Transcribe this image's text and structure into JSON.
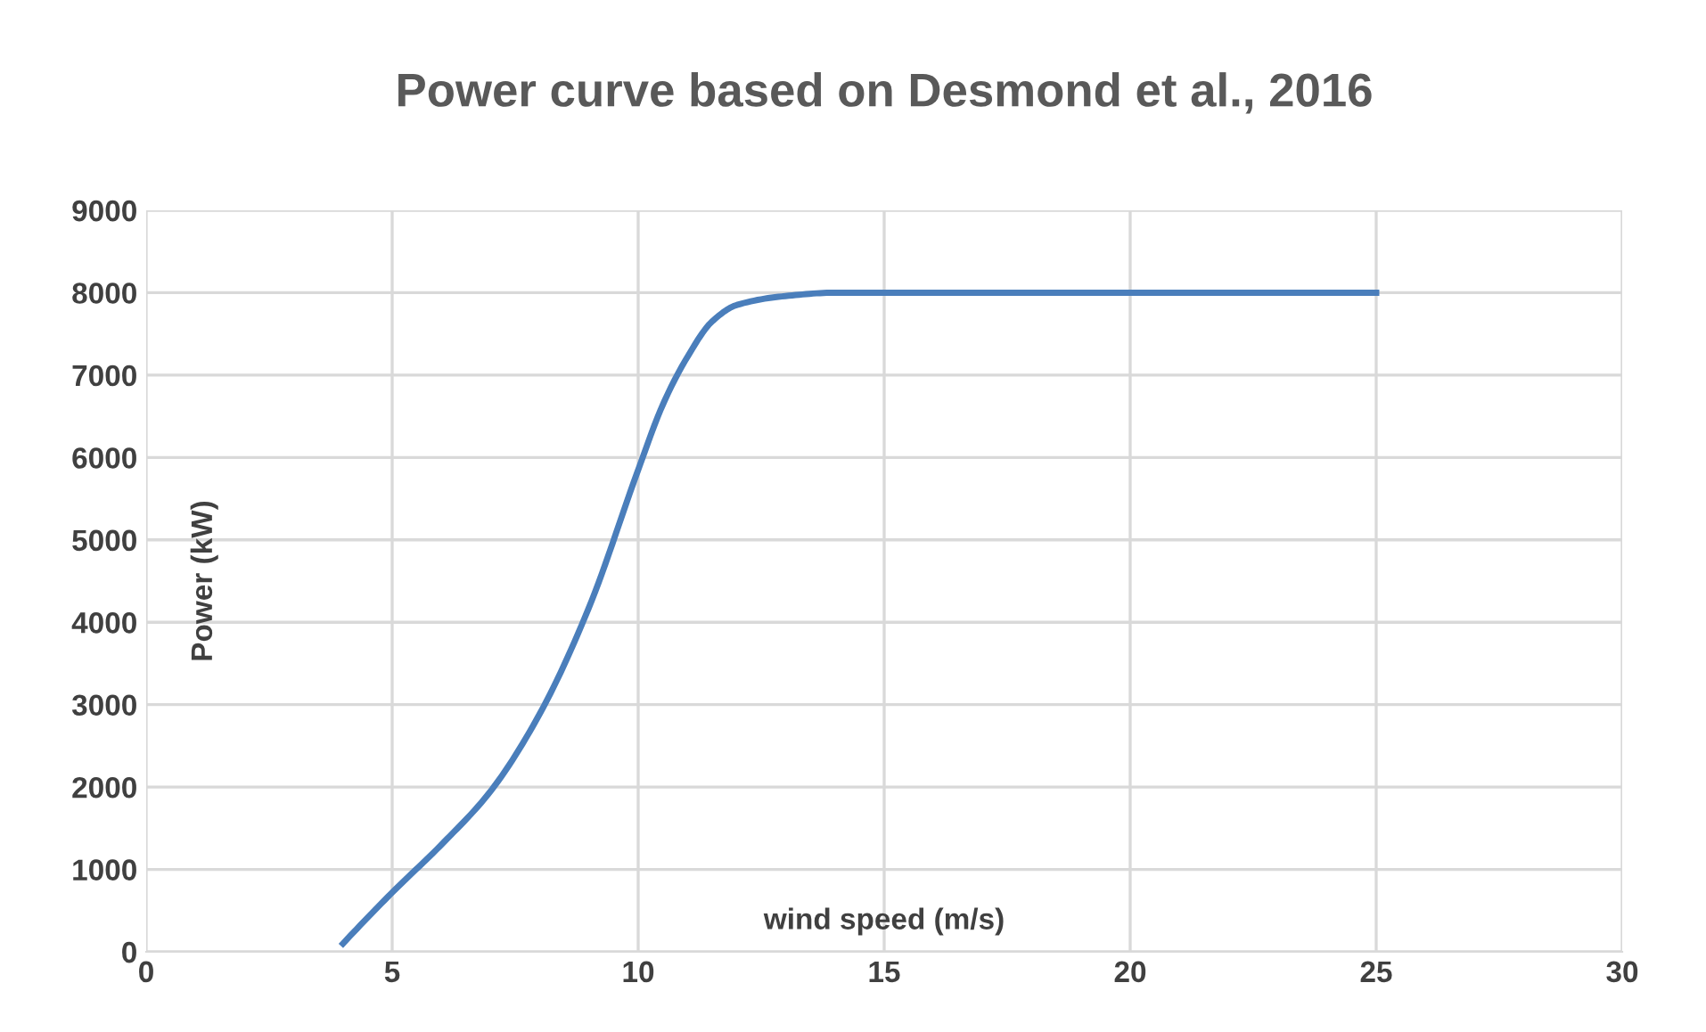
{
  "chart_data": {
    "type": "line",
    "title": "Power curve based on Desmond et al., 2016",
    "xlabel": "wind speed (m/s)",
    "ylabel": "Power (kW)",
    "x": [
      4,
      5,
      6,
      7,
      8,
      9,
      10,
      10.5,
      11,
      11.5,
      12,
      13,
      14,
      25
    ],
    "series": [
      {
        "color": "#4a7ebb",
        "values": [
          100,
          720,
          1300,
          1950,
          2890,
          4180,
          5850,
          6640,
          7220,
          7650,
          7850,
          7960,
          8000,
          8000
        ]
      }
    ],
    "xlim": [
      0,
      30
    ],
    "xticks": [
      0,
      5,
      10,
      15,
      20,
      25,
      30
    ],
    "ylim": [
      0,
      9000
    ],
    "yticks": [
      0,
      1000,
      2000,
      3000,
      4000,
      5000,
      6000,
      7000,
      8000,
      9000
    ],
    "grid": true,
    "marker": "none",
    "line_style": "solid"
  }
}
